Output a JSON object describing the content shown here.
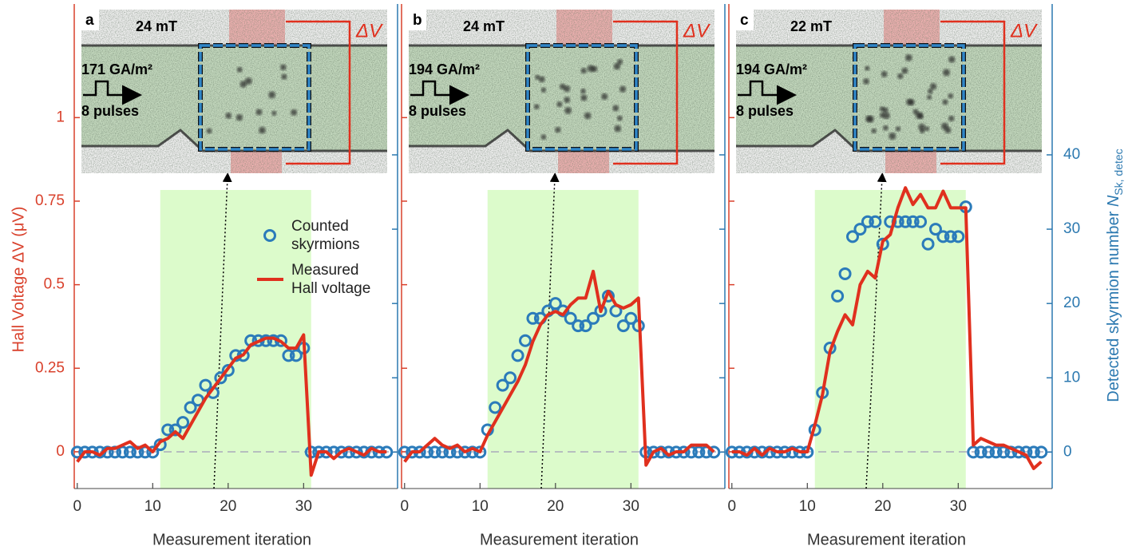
{
  "chart_data": [
    {
      "type": "line",
      "panel_label": "a",
      "inset": {
        "field": "24 mT",
        "current": "171 GA/m²",
        "pulses": "8 pulses",
        "voltage_label": "ΔV"
      },
      "xlabel": "Measurement iteration",
      "ylabel": "Hall Voltage ΔV (μV)",
      "x": [
        0,
        1,
        2,
        3,
        4,
        5,
        6,
        7,
        8,
        9,
        10,
        11,
        12,
        13,
        14,
        15,
        16,
        17,
        18,
        19,
        20,
        21,
        22,
        23,
        24,
        25,
        26,
        27,
        28,
        29,
        30,
        31,
        32,
        33,
        34,
        35,
        36,
        37,
        38,
        39,
        40,
        41
      ],
      "xlim": [
        -0.4,
        42.45
      ],
      "xticks": [
        0,
        10,
        20,
        30
      ],
      "ylim": [
        -0.11,
        1.34
      ],
      "yticks": [
        0,
        0.25,
        0.5,
        0.75,
        1
      ],
      "y2lim": [
        -4.9,
        60.3
      ],
      "y2ticks": [
        0,
        10,
        20,
        30,
        40
      ],
      "shaded_span": [
        11,
        31
      ],
      "series": [
        {
          "name": "Counted\nskyrmions",
          "color": "#2b7bba",
          "marker": "circle",
          "axis": "y2",
          "values": [
            0,
            0,
            0,
            0,
            0,
            0,
            0,
            0,
            0,
            0,
            0,
            1,
            3,
            3,
            4,
            6,
            7,
            9,
            8,
            10,
            11,
            13,
            13,
            15,
            15,
            15,
            15,
            15,
            13,
            13,
            14,
            0,
            0,
            0,
            0,
            0,
            0,
            0,
            0,
            0,
            0,
            0
          ]
        },
        {
          "name": "Measured\nHall voltage",
          "color": "#e0301e",
          "marker": "none",
          "values": [
            -0.03,
            0,
            0,
            -0.01,
            0.01,
            0.01,
            0.02,
            0.03,
            0.01,
            0.02,
            0,
            0.03,
            0.04,
            0.06,
            0.04,
            0.08,
            0.12,
            0.16,
            0.19,
            0.22,
            0.25,
            0.28,
            0.29,
            0.32,
            0.33,
            0.34,
            0.34,
            0.33,
            0.31,
            0.31,
            0.35,
            -0.07,
            0,
            0,
            -0.02,
            0,
            0.01,
            0,
            -0.01,
            0.01,
            0,
            0
          ]
        }
      ]
    },
    {
      "type": "line",
      "panel_label": "b",
      "inset": {
        "field": "24 mT",
        "current": "194 GA/m²",
        "pulses": "8 pulses",
        "voltage_label": "ΔV"
      },
      "xlabel": "Measurement iteration",
      "x": [
        0,
        1,
        2,
        3,
        4,
        5,
        6,
        7,
        8,
        9,
        10,
        11,
        12,
        13,
        14,
        15,
        16,
        17,
        18,
        19,
        20,
        21,
        22,
        23,
        24,
        25,
        26,
        27,
        28,
        29,
        30,
        31,
        32,
        33,
        34,
        35,
        36,
        37,
        38,
        39,
        40,
        41
      ],
      "xlim": [
        -0.4,
        42.45
      ],
      "xticks": [
        0,
        10,
        20,
        30
      ],
      "ylim": [
        -0.11,
        1.34
      ],
      "yticks": [
        0,
        0.25,
        0.5,
        0.75,
        1
      ],
      "y2lim": [
        -4.9,
        60.3
      ],
      "y2ticks": [
        0,
        10,
        20,
        30,
        40
      ],
      "shaded_span": [
        11,
        31
      ],
      "series": [
        {
          "color": "#2b7bba",
          "marker": "circle",
          "axis": "y2",
          "values": [
            0,
            0,
            0,
            0,
            0,
            0,
            0,
            0,
            0,
            0,
            0,
            3,
            6,
            9,
            10,
            13,
            15,
            18,
            18,
            19,
            20,
            19,
            18,
            17,
            17,
            18,
            19,
            21,
            19,
            17,
            18,
            17,
            0,
            0,
            0,
            0,
            0,
            0,
            0,
            0,
            0,
            0
          ]
        },
        {
          "color": "#e0301e",
          "marker": "none",
          "values": [
            -0.03,
            0,
            0,
            0.02,
            0.04,
            0.02,
            0.01,
            0.02,
            0,
            0.01,
            0,
            0.05,
            0.09,
            0.13,
            0.17,
            0.21,
            0.26,
            0.33,
            0.38,
            0.41,
            0.42,
            0.41,
            0.44,
            0.46,
            0.46,
            0.54,
            0.42,
            0.48,
            0.44,
            0.43,
            0.44,
            0.46,
            -0.04,
            0,
            0.01,
            -0.01,
            0,
            0,
            0.02,
            0.02,
            0.02,
            0
          ]
        }
      ]
    },
    {
      "type": "line",
      "panel_label": "c",
      "inset": {
        "field": "22 mT",
        "current": "194 GA/m²",
        "pulses": "8 pulses",
        "voltage_label": "ΔV"
      },
      "xlabel": "Measurement iteration",
      "y2label": {
        "text": "Detected skyrmion number ",
        "symbol": "N",
        "subscript": "Sk, detec"
      },
      "x": [
        0,
        1,
        2,
        3,
        4,
        5,
        6,
        7,
        8,
        9,
        10,
        11,
        12,
        13,
        14,
        15,
        16,
        17,
        18,
        19,
        20,
        21,
        22,
        23,
        24,
        25,
        26,
        27,
        28,
        29,
        30,
        31,
        32,
        33,
        34,
        35,
        36,
        37,
        38,
        39,
        40,
        41
      ],
      "xlim": [
        -0.4,
        42.45
      ],
      "xticks": [
        0,
        10,
        20,
        30
      ],
      "ylim": [
        -0.11,
        1.34
      ],
      "yticks": [
        0,
        0.25,
        0.5,
        0.75,
        1
      ],
      "y2lim": [
        -4.9,
        60.3
      ],
      "y2ticks": [
        0,
        10,
        20,
        30,
        40
      ],
      "shaded_span": [
        11,
        31
      ],
      "series": [
        {
          "color": "#2b7bba",
          "marker": "circle",
          "axis": "y2",
          "values": [
            0,
            0,
            0,
            0,
            0,
            0,
            0,
            0,
            0,
            0,
            0,
            3,
            8,
            14,
            21,
            24,
            29,
            30,
            31,
            31,
            28,
            31,
            31,
            31,
            31,
            31,
            28,
            30,
            29,
            29,
            29,
            33,
            0,
            0,
            0,
            0,
            0,
            0,
            0,
            0,
            0,
            0
          ]
        },
        {
          "color": "#e0301e",
          "marker": "none",
          "values": [
            0,
            0,
            -0.01,
            0.01,
            -0.01,
            0.01,
            0,
            0,
            0.01,
            0,
            0,
            0.08,
            0.17,
            0.3,
            0.36,
            0.41,
            0.38,
            0.5,
            0.54,
            0.52,
            0.63,
            0.65,
            0.73,
            0.79,
            0.74,
            0.77,
            0.73,
            0.73,
            0.78,
            0.73,
            0.73,
            0.73,
            0.02,
            0.04,
            0.03,
            0.02,
            0.02,
            0.01,
            0,
            -0.01,
            -0.05,
            -0.03
          ]
        }
      ]
    }
  ]
}
